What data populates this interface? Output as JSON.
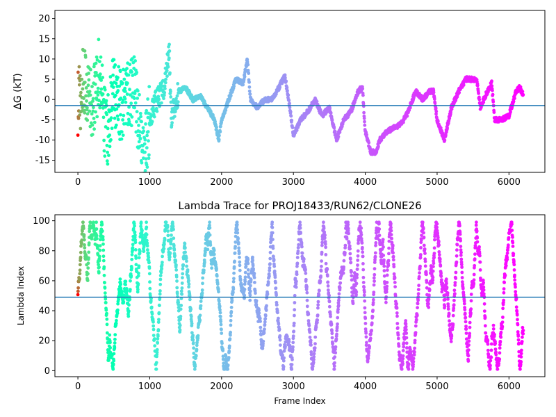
{
  "chart_data": [
    {
      "type": "scatter",
      "title": "",
      "xlabel": "",
      "ylabel": "ΔG (kT)",
      "xlim": [
        -320,
        6500
      ],
      "ylim": [
        -18,
        22
      ],
      "xticks": [
        0,
        1000,
        2000,
        3000,
        4000,
        5000,
        6000
      ],
      "yticks": [
        -15,
        -10,
        -5,
        0,
        5,
        10,
        15,
        20
      ],
      "hline": -1.5,
      "hline_color": "#1f77b4",
      "colormap": "rainbow (red at frame 0 → violet at end)",
      "grid": false,
      "series": [
        {
          "x": [
            0,
            100,
            200,
            300,
            400,
            500,
            600,
            700,
            800,
            900,
            1000,
            1100,
            1200,
            1270,
            1300,
            1400,
            1500,
            1600,
            1700,
            1800,
            1900,
            1960,
            2000,
            2100,
            2200,
            2300,
            2360,
            2400,
            2500,
            2600,
            2700,
            2800,
            2880,
            2950,
            3000,
            3100,
            3200,
            3300,
            3400,
            3500,
            3600,
            3700,
            3800,
            3900,
            3960,
            4000,
            4080,
            4150,
            4200,
            4300,
            4400,
            4500,
            4600,
            4700,
            4800,
            4900,
            4950,
            5000,
            5100,
            5200,
            5300,
            5400,
            5500,
            5550,
            5600,
            5700,
            5760,
            5800,
            5900,
            6000,
            6100,
            6150,
            6200
          ],
          "y": [
            0,
            5,
            -3,
            8,
            -10,
            3,
            -2,
            1,
            2,
            -15,
            -5,
            0,
            3,
            12,
            -5,
            2,
            3,
            0,
            1,
            -2,
            -5,
            -10,
            -5,
            0,
            5,
            4,
            10,
            0,
            -2,
            0,
            0,
            3,
            6,
            -2,
            -9,
            -5,
            -3,
            0,
            -4,
            -2,
            -10,
            -5,
            -3,
            2,
            3,
            -8,
            -13,
            -13,
            -10,
            -8,
            -7,
            -6,
            -3,
            2,
            0,
            2,
            2,
            -5,
            -10,
            -2,
            2,
            5,
            5,
            5,
            -2,
            2,
            4,
            -5,
            -5,
            -4,
            2,
            3,
            1
          ]
        }
      ]
    },
    {
      "type": "scatter",
      "title": "Lambda Trace for PROJ18433/RUN62/CLONE26",
      "xlabel": "Frame Index",
      "ylabel": "Lambda Index",
      "xlim": [
        -320,
        6500
      ],
      "ylim": [
        -4,
        104
      ],
      "xticks": [
        0,
        1000,
        2000,
        3000,
        4000,
        5000,
        6000
      ],
      "yticks": [
        0,
        20,
        40,
        60,
        80,
        100
      ],
      "hline": 49,
      "hline_color": "#1f77b4",
      "colormap": "rainbow (red at frame 0 → violet at end)",
      "grid": false,
      "series": [
        {
          "x_range": [
            0,
            6200
          ],
          "y_range": [
            0,
            99
          ],
          "n_points": 6200
        }
      ]
    }
  ]
}
